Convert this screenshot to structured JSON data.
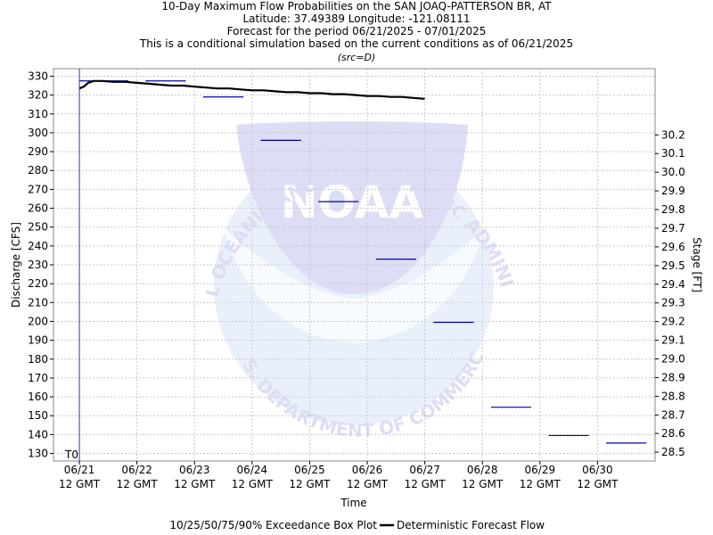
{
  "chart_data": {
    "type": "line",
    "title_lines": [
      "10-Day Maximum Flow Probabilities on the SAN JOAQ-PATTERSON BR, AT",
      "Latitude: 37.49389 Longitude: -121.08111",
      "Forecast for the period 06/21/2025 - 07/01/2025",
      "This is a conditional simulation based on the current conditions as of 06/21/2025"
    ],
    "subtitle": "(src=D)",
    "ylabel": "Discharge [CFS]",
    "ylabel_right": "Stage [FT]",
    "xlabel": "Time",
    "ylim": [
      126,
      334
    ],
    "yticks": [
      130,
      140,
      150,
      160,
      170,
      180,
      190,
      200,
      210,
      220,
      230,
      240,
      250,
      260,
      270,
      280,
      290,
      300,
      310,
      320,
      330
    ],
    "right_ticks": [
      {
        "flow": 130.7,
        "label": "28.5"
      },
      {
        "flow": 140.6,
        "label": "28.6"
      },
      {
        "flow": 150.4,
        "label": "28.7"
      },
      {
        "flow": 160.3,
        "label": "28.8"
      },
      {
        "flow": 170.2,
        "label": "28.9"
      },
      {
        "flow": 180.1,
        "label": "29.0"
      },
      {
        "flow": 190.0,
        "label": "29.1"
      },
      {
        "flow": 199.9,
        "label": "29.2"
      },
      {
        "flow": 209.8,
        "label": "29.3"
      },
      {
        "flow": 219.7,
        "label": "29.4"
      },
      {
        "flow": 229.6,
        "label": "29.5"
      },
      {
        "flow": 239.5,
        "label": "29.6"
      },
      {
        "flow": 249.4,
        "label": "29.7"
      },
      {
        "flow": 259.3,
        "label": "29.8"
      },
      {
        "flow": 269.2,
        "label": "29.9"
      },
      {
        "flow": 279.1,
        "label": "30.0"
      },
      {
        "flow": 289.0,
        "label": "30.1"
      },
      {
        "flow": 298.9,
        "label": "30.2"
      }
    ],
    "xlim": [
      -0.45,
      10.0
    ],
    "xticks": [
      {
        "day": 0,
        "label1": "06/21",
        "label2": "12 GMT"
      },
      {
        "day": 1,
        "label1": "06/22",
        "label2": "12 GMT"
      },
      {
        "day": 2,
        "label1": "06/23",
        "label2": "12 GMT"
      },
      {
        "day": 3,
        "label1": "06/24",
        "label2": "12 GMT"
      },
      {
        "day": 4,
        "label1": "06/25",
        "label2": "12 GMT"
      },
      {
        "day": 5,
        "label1": "06/26",
        "label2": "12 GMT"
      },
      {
        "day": 6,
        "label1": "06/27",
        "label2": "12 GMT"
      },
      {
        "day": 7,
        "label1": "06/28",
        "label2": "12 GMT"
      },
      {
        "day": 8,
        "label1": "06/29",
        "label2": "12 GMT"
      },
      {
        "day": 9,
        "label1": "06/30",
        "label2": "12 GMT"
      }
    ],
    "t0_day": 0.0,
    "t0_label": "T0",
    "exceedance_bars": [
      {
        "start": 0.0,
        "end": 0.85,
        "value": 327.5
      },
      {
        "start": 1.15,
        "end": 1.85,
        "value": 327.5
      },
      {
        "start": 2.15,
        "end": 2.85,
        "value": 319.0
      },
      {
        "start": 3.15,
        "end": 3.85,
        "value": 296.0
      },
      {
        "start": 4.15,
        "end": 4.85,
        "value": 263.5
      },
      {
        "start": 5.15,
        "end": 5.85,
        "value": 233.0
      },
      {
        "start": 6.15,
        "end": 6.85,
        "value": 199.5
      },
      {
        "start": 7.15,
        "end": 7.85,
        "value": 154.5
      },
      {
        "start": 8.15,
        "end": 8.85,
        "value": 139.5
      },
      {
        "start": 9.15,
        "end": 9.85,
        "value": 135.5
      }
    ],
    "series": [
      {
        "name": "Deterministic Forecast Flow",
        "points": [
          [
            0.0,
            323.5
          ],
          [
            0.08,
            324.5
          ],
          [
            0.15,
            326.5
          ],
          [
            0.25,
            327.5
          ],
          [
            0.4,
            327.5
          ],
          [
            0.6,
            327.0
          ],
          [
            0.8,
            327.0
          ],
          [
            1.0,
            326.5
          ],
          [
            1.2,
            326.0
          ],
          [
            1.4,
            325.5
          ],
          [
            1.6,
            325.0
          ],
          [
            1.8,
            325.0
          ],
          [
            2.0,
            324.5
          ],
          [
            2.2,
            324.0
          ],
          [
            2.4,
            323.5
          ],
          [
            2.6,
            323.5
          ],
          [
            2.8,
            323.0
          ],
          [
            3.0,
            322.5
          ],
          [
            3.2,
            322.5
          ],
          [
            3.4,
            322.0
          ],
          [
            3.6,
            321.5
          ],
          [
            3.8,
            321.5
          ],
          [
            4.0,
            321.0
          ],
          [
            4.2,
            321.0
          ],
          [
            4.4,
            320.5
          ],
          [
            4.6,
            320.5
          ],
          [
            4.8,
            320.0
          ],
          [
            5.0,
            319.5
          ],
          [
            5.2,
            319.5
          ],
          [
            5.4,
            319.0
          ],
          [
            5.6,
            319.0
          ],
          [
            5.8,
            318.5
          ],
          [
            6.0,
            318.0
          ]
        ]
      }
    ],
    "legend": {
      "box_plot_label": "10/25/50/75/90% Exceedance Box Plot",
      "line_label": "Deterministic Forecast Flow"
    },
    "watermark_text": {
      "logo_word": "NOAA",
      "top_arc": "NATIONAL OCEANIC AND ATMOSPHERIC ADMINISTRATION",
      "bottom_arc": "U.S. DEPARTMENT OF COMMERCE"
    },
    "grid": true,
    "colors": {
      "series": "#000000",
      "bars": "#0000aa",
      "t0_line": "#3333cc",
      "grid": "#c8c8c8",
      "watermark": "#dcdcf5",
      "watermark_light": "#e9f0fb"
    }
  }
}
